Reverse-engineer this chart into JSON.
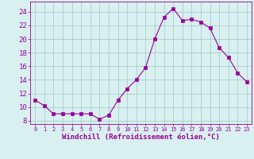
{
  "x": [
    0,
    1,
    2,
    3,
    4,
    5,
    6,
    7,
    8,
    9,
    10,
    11,
    12,
    13,
    14,
    15,
    16,
    17,
    18,
    19,
    20,
    21,
    22,
    23
  ],
  "y": [
    11.0,
    10.2,
    9.0,
    9.0,
    9.0,
    9.0,
    9.0,
    8.2,
    8.8,
    11.0,
    12.7,
    14.0,
    15.8,
    20.0,
    23.2,
    24.5,
    22.7,
    22.9,
    22.5,
    21.6,
    18.7,
    17.3,
    15.0,
    13.7
  ],
  "line_color": "#990099",
  "marker": "s",
  "marker_size": 2.5,
  "bg_color": "#d8f0f0",
  "grid_color": "#aacece",
  "xlabel": "Windchill (Refroidissement éolien,°C)",
  "xlim": [
    -0.5,
    23.5
  ],
  "ylim": [
    7.5,
    25.5
  ],
  "yticks": [
    8,
    10,
    12,
    14,
    16,
    18,
    20,
    22,
    24
  ],
  "xticks": [
    0,
    1,
    2,
    3,
    4,
    5,
    6,
    7,
    8,
    9,
    10,
    11,
    12,
    13,
    14,
    15,
    16,
    17,
    18,
    19,
    20,
    21,
    22,
    23
  ],
  "tick_color": "#990099",
  "label_color": "#990099",
  "ylabel_fontsize": 6,
  "xlabel_fontsize": 6.5,
  "xtick_fontsize": 5.0,
  "ytick_fontsize": 6.5
}
